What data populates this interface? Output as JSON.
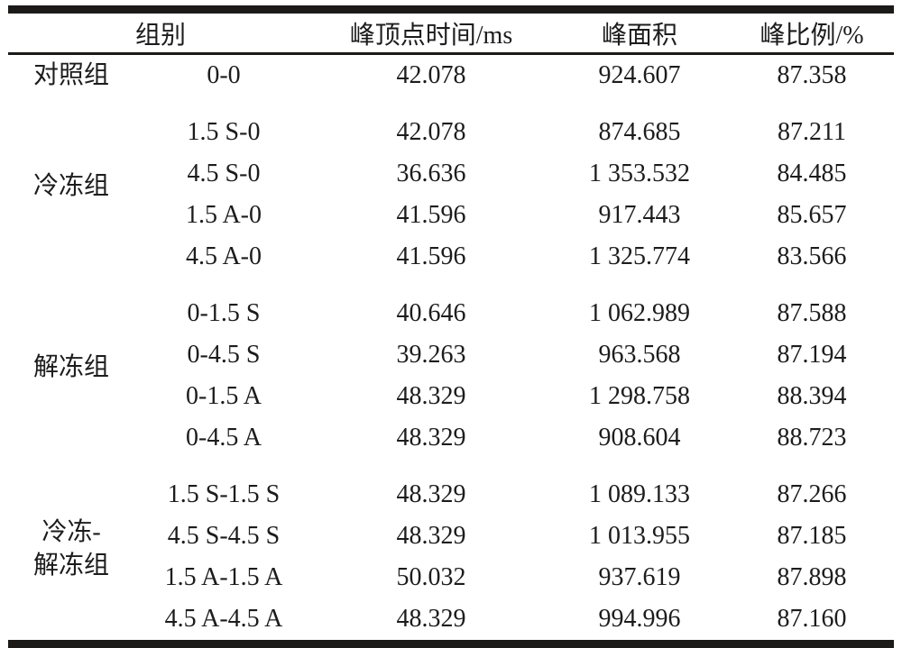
{
  "table": {
    "header": {
      "group": "组别",
      "peak_time": "峰顶点时间/ms",
      "peak_area": "峰面积",
      "peak_ratio": "峰比例/%"
    },
    "sections": [
      {
        "group": "对照组",
        "rows": [
          {
            "condition": "0-0",
            "peak_time": "42.078",
            "peak_area": "924.607",
            "peak_ratio": "87.358"
          }
        ]
      },
      {
        "group": "冷冻组",
        "rows": [
          {
            "condition": "1.5 S-0",
            "peak_time": "42.078",
            "peak_area": "874.685",
            "peak_ratio": "87.211"
          },
          {
            "condition": "4.5 S-0",
            "peak_time": "36.636",
            "peak_area": "1 353.532",
            "peak_ratio": "84.485"
          },
          {
            "condition": "1.5 A-0",
            "peak_time": "41.596",
            "peak_area": "917.443",
            "peak_ratio": "85.657"
          },
          {
            "condition": "4.5 A-0",
            "peak_time": "41.596",
            "peak_area": "1 325.774",
            "peak_ratio": "83.566"
          }
        ]
      },
      {
        "group": "解冻组",
        "rows": [
          {
            "condition": "0-1.5 S",
            "peak_time": "40.646",
            "peak_area": "1 062.989",
            "peak_ratio": "87.588"
          },
          {
            "condition": "0-4.5 S",
            "peak_time": "39.263",
            "peak_area": "963.568",
            "peak_ratio": "87.194"
          },
          {
            "condition": "0-1.5 A",
            "peak_time": "48.329",
            "peak_area": "1 298.758",
            "peak_ratio": "88.394"
          },
          {
            "condition": "0-4.5 A",
            "peak_time": "48.329",
            "peak_area": "908.604",
            "peak_ratio": "88.723"
          }
        ]
      },
      {
        "group": "冷冻-\n解冻组",
        "rows": [
          {
            "condition": "1.5 S-1.5 S",
            "peak_time": "48.329",
            "peak_area": "1 089.133",
            "peak_ratio": "87.266"
          },
          {
            "condition": "4.5 S-4.5 S",
            "peak_time": "48.329",
            "peak_area": "1 013.955",
            "peak_ratio": "87.185"
          },
          {
            "condition": "1.5 A-1.5 A",
            "peak_time": "50.032",
            "peak_area": "937.619",
            "peak_ratio": "87.898"
          },
          {
            "condition": "4.5 A-4.5 A",
            "peak_time": "48.329",
            "peak_area": "994.996",
            "peak_ratio": "87.160"
          }
        ]
      }
    ],
    "colors": {
      "text": "#1c1c1c",
      "background": "#ffffff",
      "rule": "#1c1a19"
    }
  }
}
